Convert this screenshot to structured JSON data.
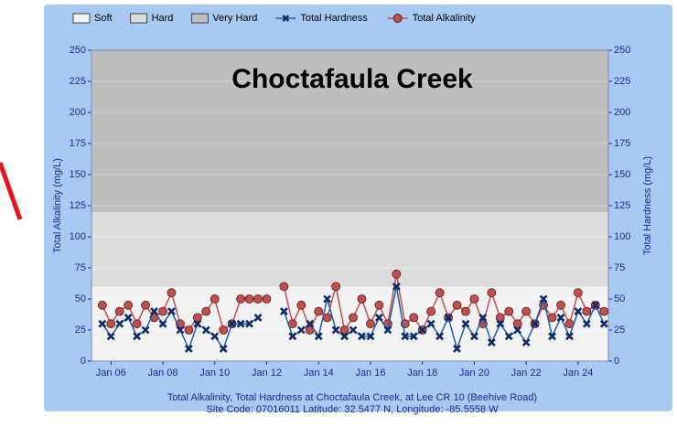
{
  "chart_data": {
    "type": "line",
    "title": "Choctafaula Creek",
    "ylabel": "Total Alkalinity (mg/L)",
    "y2label": "Total Hardness (mg/L)",
    "caption": [
      "Total Alkalinity, Total Hardness at Choctafaula Creek, at Lee CR 10 (Beehive Road)",
      "Site Code: 07016011  Latitude: 32.5477 N, Longitude: -85.5558 W"
    ],
    "bands": [
      {
        "name": "Soft",
        "range": [
          0,
          60
        ],
        "color": "#f2f2f2"
      },
      {
        "name": "Hard",
        "range": [
          60,
          120
        ],
        "color": "#dcdcdc"
      },
      {
        "name": "Very Hard",
        "range": [
          120,
          250
        ],
        "color": "#bebebe"
      }
    ],
    "x": [
      "2005-09",
      "2006-01",
      "2006-05",
      "2006-09",
      "2007-01",
      "2007-05",
      "2007-09",
      "2008-01",
      "2008-05",
      "2008-09",
      "2009-01",
      "2009-05",
      "2009-09",
      "2010-01",
      "2010-05",
      "2010-09",
      "2011-01",
      "2011-05",
      "2011-09",
      "2012-01",
      "2012-05",
      "2012-09",
      "2013-01",
      "2013-05",
      "2013-09",
      "2014-01",
      "2014-05",
      "2014-09",
      "2015-01",
      "2015-05",
      "2015-09",
      "2016-01",
      "2016-05",
      "2016-09",
      "2017-01",
      "2017-05",
      "2017-09",
      "2018-01",
      "2018-05",
      "2018-09",
      "2019-01",
      "2019-05",
      "2019-09",
      "2020-01",
      "2020-05",
      "2020-09",
      "2021-01",
      "2021-05",
      "2021-09",
      "2022-01",
      "2022-05",
      "2022-09",
      "2023-01",
      "2023-05",
      "2023-09",
      "2024-01",
      "2024-05",
      "2024-09",
      "2025-01"
    ],
    "series": [
      {
        "name": "Total Alkalinity",
        "color": "#c0504d",
        "axis": "y",
        "marker": "circle",
        "values": [
          45,
          30,
          40,
          45,
          30,
          45,
          35,
          40,
          55,
          30,
          25,
          35,
          40,
          50,
          25,
          30,
          50,
          50,
          50,
          50,
          null,
          60,
          30,
          45,
          25,
          40,
          35,
          60,
          25,
          35,
          50,
          30,
          45,
          30,
          70,
          30,
          35,
          25,
          40,
          55,
          35,
          45,
          40,
          50,
          30,
          55,
          35,
          40,
          30,
          40,
          30,
          45,
          35,
          45,
          30,
          55,
          40,
          45,
          40
        ]
      },
      {
        "name": "Total Hardness",
        "color": "#1f5fa8",
        "axis": "y2",
        "marker": "x",
        "values": [
          30,
          20,
          30,
          35,
          20,
          25,
          40,
          30,
          40,
          25,
          10,
          30,
          25,
          20,
          10,
          30,
          30,
          30,
          35,
          null,
          null,
          40,
          20,
          25,
          30,
          20,
          50,
          25,
          20,
          25,
          20,
          20,
          35,
          25,
          60,
          20,
          20,
          25,
          30,
          20,
          35,
          10,
          30,
          20,
          35,
          15,
          30,
          20,
          25,
          15,
          30,
          50,
          20,
          35,
          20,
          40,
          30,
          45,
          30
        ]
      }
    ],
    "xlim": [
      "2005-04",
      "2025-03"
    ],
    "xticks": [
      {
        "value": "2006-01",
        "label": "Jan 06"
      },
      {
        "value": "2008-01",
        "label": "Jan 08"
      },
      {
        "value": "2010-01",
        "label": "Jan 10"
      },
      {
        "value": "2012-01",
        "label": "Jan 12"
      },
      {
        "value": "2014-01",
        "label": "Jan 14"
      },
      {
        "value": "2016-01",
        "label": "Jan 16"
      },
      {
        "value": "2018-01",
        "label": "Jan 18"
      },
      {
        "value": "2020-01",
        "label": "Jan 20"
      },
      {
        "value": "2022-01",
        "label": "Jan 22"
      },
      {
        "value": "2024-01",
        "label": "Jan 24"
      }
    ],
    "ylim": [
      0,
      250
    ],
    "yticks": [
      0,
      25,
      50,
      75,
      100,
      125,
      150,
      175,
      200,
      225,
      250
    ],
    "y2lim": [
      0,
      250
    ],
    "y2ticks": [
      0,
      25,
      50,
      75,
      100,
      125,
      150,
      175,
      200,
      225,
      250
    ],
    "grid": true,
    "legend": "top"
  }
}
